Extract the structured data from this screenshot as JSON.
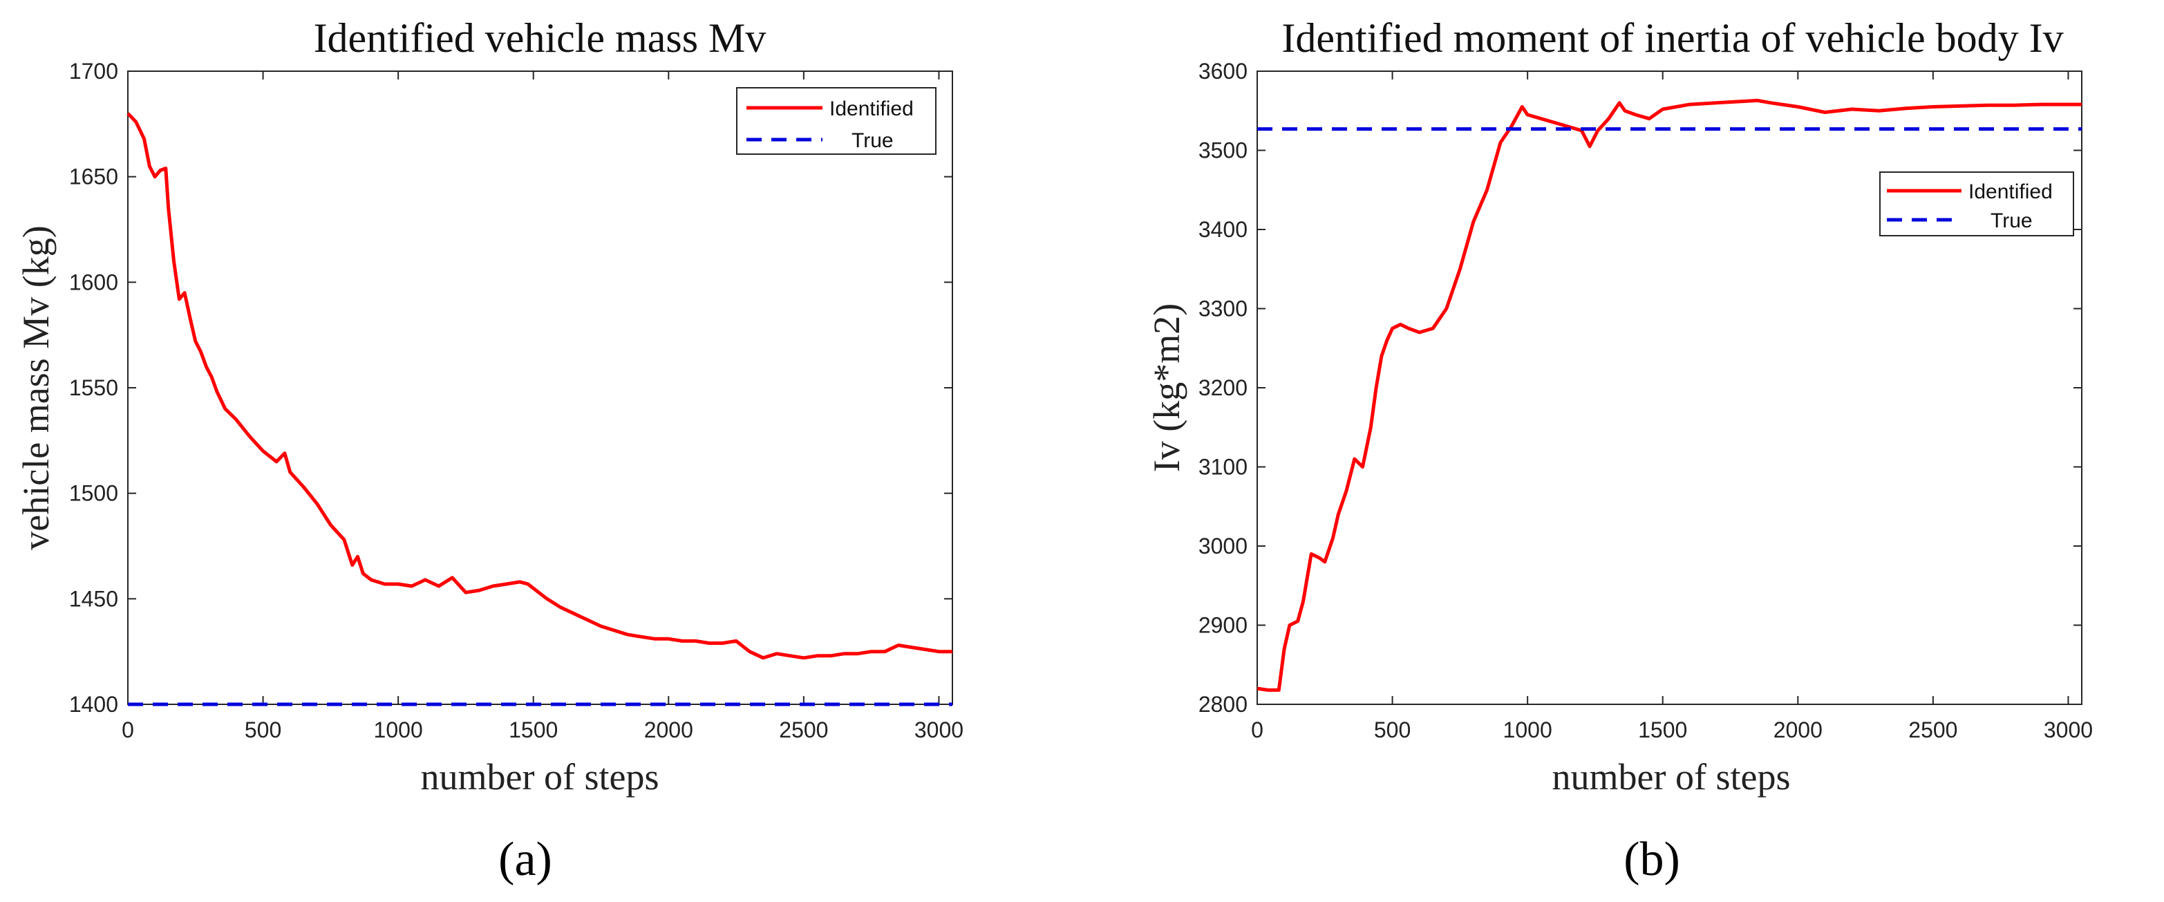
{
  "chart_data": [
    {
      "type": "line",
      "panel_label": "(a)",
      "title": "Identified vehicle mass Mv",
      "xlabel": "number of steps",
      "ylabel": "vehicle mass Mv (kg)",
      "xlim": [
        0,
        3050
      ],
      "ylim": [
        1400,
        1700
      ],
      "xticks": [
        0,
        500,
        1000,
        1500,
        2000,
        2500,
        3000
      ],
      "yticks": [
        1400,
        1450,
        1500,
        1550,
        1600,
        1650,
        1700
      ],
      "legend_position": "top-right",
      "series": [
        {
          "name": "Identified",
          "color": "#ff0000",
          "style": "solid",
          "x": [
            0,
            30,
            60,
            80,
            100,
            120,
            140,
            150,
            170,
            190,
            210,
            230,
            250,
            270,
            290,
            310,
            330,
            360,
            400,
            450,
            500,
            550,
            580,
            600,
            650,
            700,
            750,
            800,
            830,
            850,
            870,
            900,
            950,
            1000,
            1050,
            1100,
            1150,
            1200,
            1250,
            1300,
            1350,
            1400,
            1450,
            1480,
            1500,
            1550,
            1600,
            1650,
            1700,
            1750,
            1800,
            1850,
            1900,
            1950,
            2000,
            2050,
            2100,
            2150,
            2200,
            2250,
            2300,
            2350,
            2400,
            2450,
            2500,
            2550,
            2600,
            2650,
            2700,
            2750,
            2800,
            2850,
            2900,
            2950,
            3000,
            3050
          ],
          "values": [
            1680,
            1676,
            1668,
            1655,
            1650,
            1653,
            1654,
            1635,
            1610,
            1592,
            1595,
            1583,
            1572,
            1567,
            1560,
            1555,
            1548,
            1540,
            1535,
            1527,
            1520,
            1515,
            1519,
            1510,
            1503,
            1495,
            1485,
            1478,
            1466,
            1470,
            1462,
            1459,
            1457,
            1457,
            1456,
            1459,
            1456,
            1460,
            1453,
            1454,
            1456,
            1457,
            1458,
            1457,
            1455,
            1450,
            1446,
            1443,
            1440,
            1437,
            1435,
            1433,
            1432,
            1431,
            1431,
            1430,
            1430,
            1429,
            1429,
            1430,
            1425,
            1422,
            1424,
            1423,
            1422,
            1423,
            1423,
            1424,
            1424,
            1425,
            1425,
            1428,
            1427,
            1426,
            1425,
            1425
          ]
        },
        {
          "name": "True",
          "color": "#0000dd",
          "style": "dashed",
          "x": [
            0,
            3050
          ],
          "values": [
            1400,
            1400
          ]
        }
      ]
    },
    {
      "type": "line",
      "panel_label": "(b)",
      "title": "Identified moment of inertia of vehicle body Iv",
      "xlabel": "number of steps",
      "ylabel": "Iv (kg*m2)",
      "xlim": [
        0,
        3050
      ],
      "ylim": [
        2800,
        3600
      ],
      "xticks": [
        0,
        500,
        1000,
        1500,
        2000,
        2500,
        3000
      ],
      "yticks": [
        2800,
        2900,
        3000,
        3100,
        3200,
        3300,
        3400,
        3500,
        3600
      ],
      "legend_position": "top-right",
      "series": [
        {
          "name": "Identified",
          "color": "#ff0000",
          "style": "solid",
          "x": [
            0,
            40,
            80,
            100,
            120,
            150,
            170,
            200,
            230,
            250,
            280,
            300,
            330,
            360,
            390,
            420,
            440,
            460,
            480,
            500,
            530,
            560,
            600,
            650,
            700,
            750,
            800,
            850,
            900,
            940,
            980,
            1000,
            1050,
            1100,
            1150,
            1200,
            1230,
            1260,
            1300,
            1340,
            1360,
            1400,
            1450,
            1500,
            1600,
            1700,
            1800,
            1850,
            1900,
            2000,
            2100,
            2200,
            2300,
            2400,
            2500,
            2600,
            2700,
            2800,
            2900,
            3000,
            3050
          ],
          "values": [
            2820,
            2818,
            2818,
            2870,
            2900,
            2905,
            2930,
            2990,
            2985,
            2980,
            3010,
            3040,
            3070,
            3110,
            3100,
            3150,
            3200,
            3240,
            3260,
            3275,
            3280,
            3275,
            3270,
            3275,
            3300,
            3350,
            3410,
            3450,
            3510,
            3530,
            3555,
            3545,
            3540,
            3535,
            3530,
            3525,
            3505,
            3525,
            3540,
            3560,
            3550,
            3545,
            3540,
            3552,
            3558,
            3560,
            3562,
            3563,
            3560,
            3555,
            3548,
            3552,
            3550,
            3553,
            3555,
            3556,
            3557,
            3557,
            3558,
            3558,
            3558
          ]
        },
        {
          "name": "True",
          "color": "#0000dd",
          "style": "dashed",
          "x": [
            0,
            3050
          ],
          "values": [
            3527,
            3527
          ]
        }
      ]
    }
  ]
}
